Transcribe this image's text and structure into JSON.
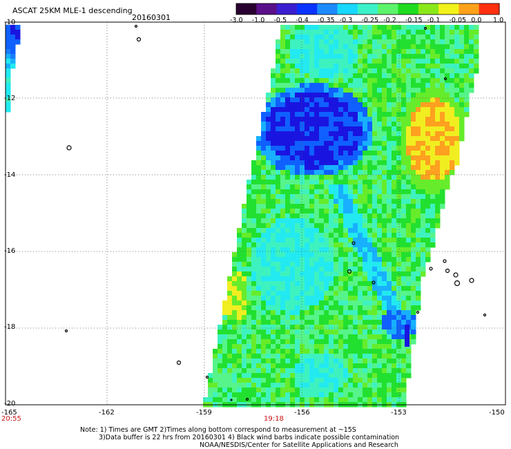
{
  "header": {
    "title": "ASCAT 25KM MLE-1 descending",
    "date": "20160301"
  },
  "colorbar": {
    "labels": [
      "-3.0",
      "-1.0",
      "-0.5",
      "-0.4",
      "-0.35",
      "-0.3",
      "-0.25",
      "-0.2",
      "-0.15",
      "-0.1",
      "-0.05",
      "0.0",
      "1.0"
    ],
    "colors": [
      "#2a0030",
      "#5a1088",
      "#3a1ed0",
      "#0a33ff",
      "#1d8aff",
      "#18d8ff",
      "#3cf2c8",
      "#5cf46a",
      "#1fdc1f",
      "#8ae81a",
      "#f2f21a",
      "#ffa21a",
      "#ff3010"
    ]
  },
  "axes": {
    "lat_labels": [
      "-10",
      "-12",
      "-14",
      "-16",
      "-18",
      "-20"
    ],
    "lon_labels": [
      "-165",
      "-162",
      "-159",
      "-156",
      "-153",
      "-150"
    ]
  },
  "times": {
    "left": "20:55",
    "mid": "19:18"
  },
  "notes": {
    "line1": "Note: 1) Times are GMT 2)Times along bottom correspond to measurement at ~15S",
    "line2": "3)Data buffer is 22 hrs from 20160301 4) Black wind barbs indicate possible contamination",
    "line3": "NOAA/NESDIS/Center for Satellite Applications and Research"
  }
}
